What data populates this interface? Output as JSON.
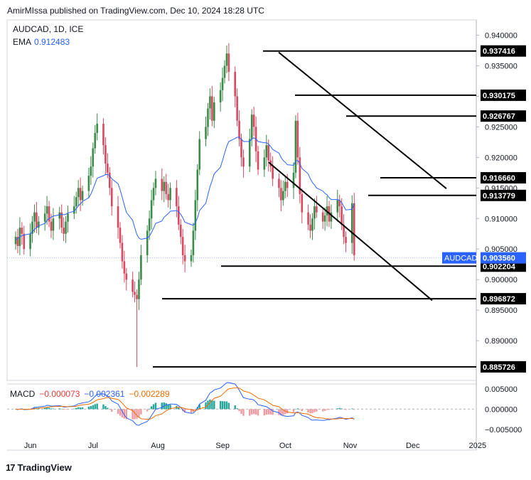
{
  "header": {
    "publish_line": "AmirMIssa published on TradingView.com, Dec 10, 2024 18:28 UTC"
  },
  "legend": {
    "symbol_line": "AUDCAD, 1D, ICE",
    "ema_label": "EMA",
    "ema_value": "0.912483"
  },
  "macd_legend": {
    "label": "MACD",
    "hist": "−0.000073",
    "macd": "−0.002361",
    "signal": "−0.002289"
  },
  "footer": {
    "brand": "TradingView"
  },
  "colors": {
    "up": "#26a69a",
    "up_body": "#3a8a48",
    "down": "#d9485f",
    "ema": "#2962ff",
    "signal": "#ef6c00",
    "hist_up": "#26a69a",
    "hist_down": "#ef9aa0"
  },
  "chart_data": {
    "type": "candlestick",
    "symbol": "AUDCAD",
    "timeframe": "1D",
    "exchange": "ICE",
    "price_axis": {
      "ticks": [
        "0.940000",
        "0.935000",
        "0.930000",
        "0.925000",
        "0.920000",
        "0.915000",
        "0.910000",
        "0.905000",
        "0.900000",
        "0.895000",
        "0.890000"
      ],
      "ylim": [
        0.8835,
        0.9425
      ]
    },
    "time_axis": {
      "ticks": [
        "Jun",
        "Jul",
        "Aug",
        "Sep",
        "Oct",
        "Nov",
        "Dec",
        "2025"
      ]
    },
    "level_labels": [
      "0.937416",
      "0.930175",
      "0.926767",
      "0.916660",
      "0.913779",
      "0.902204",
      "0.896872",
      "0.885726"
    ],
    "current_price": {
      "label": "AUDCAD",
      "value": "0.903560"
    },
    "macd_axis": {
      "ticks": [
        "0.005000",
        "0.000000",
        "−0.005000"
      ],
      "ylim": [
        -0.0066,
        0.0062
      ]
    },
    "candles_start": "2024-05-27",
    "closes": [
      0.907,
      0.9055,
      0.9085,
      0.9075,
      0.905,
      0.9075,
      0.9095,
      0.911,
      0.9085,
      0.9095,
      0.9108,
      0.912,
      0.9095,
      0.908,
      0.91,
      0.911,
      0.9085,
      0.9075,
      0.9095,
      0.9108,
      0.912,
      0.9135,
      0.915,
      0.913,
      0.9145,
      0.917,
      0.9185,
      0.9215,
      0.924,
      0.9255,
      0.922,
      0.919,
      0.9175,
      0.915,
      0.912,
      0.9085,
      0.906,
      0.903,
      0.901,
      0.9,
      0.898,
      0.8975,
      0.8968,
      0.9,
      0.904,
      0.908,
      0.91,
      0.913,
      0.915,
      0.9165,
      0.9145,
      0.916,
      0.914,
      0.913,
      0.915,
      0.912,
      0.909,
      0.907,
      0.904,
      0.903,
      0.904,
      0.908,
      0.913,
      0.918,
      0.923,
      0.925,
      0.928,
      0.93,
      0.926,
      0.929,
      0.931,
      0.933,
      0.935,
      0.937,
      0.934,
      0.93,
      0.926,
      0.923,
      0.92,
      0.9185,
      0.923,
      0.927,
      0.925,
      0.921,
      0.918,
      0.92,
      0.922,
      0.9195,
      0.9185,
      0.9165,
      0.915,
      0.913,
      0.9145,
      0.916,
      0.915,
      0.9175,
      0.926,
      0.92,
      0.914,
      0.911,
      0.909,
      0.908,
      0.91,
      0.912,
      0.911,
      0.9095,
      0.9105,
      0.912,
      0.9095,
      0.911,
      0.913,
      0.912,
      0.909,
      0.907,
      0.906,
      0.9125,
      0.904
    ],
    "ema": [
      0.9065,
      0.9067,
      0.907,
      0.9072,
      0.9073,
      0.9075,
      0.9078,
      0.9082,
      0.9085,
      0.9088,
      0.9092,
      0.9097,
      0.91,
      0.9102,
      0.9104,
      0.9106,
      0.9107,
      0.9106,
      0.9107,
      0.9109,
      0.9112,
      0.9116,
      0.9121,
      0.9124,
      0.9128,
      0.9134,
      0.914,
      0.9148,
      0.9157,
      0.9166,
      0.917,
      0.9172,
      0.9172,
      0.917,
      0.9165,
      0.9157,
      0.9147,
      0.9135,
      0.9122,
      0.911,
      0.9097,
      0.9085,
      0.9074,
      0.9068,
      0.9066,
      0.9068,
      0.9071,
      0.9077,
      0.9084,
      0.9092,
      0.9096,
      0.9102,
      0.9105,
      0.9108,
      0.9112,
      0.9113,
      0.9111,
      0.9107,
      0.9101,
      0.9094,
      0.909,
      0.9089,
      0.9093,
      0.9101,
      0.9113,
      0.9125,
      0.9139,
      0.9152,
      0.9162,
      0.9173,
      0.9184,
      0.9195,
      0.9207,
      0.9218,
      0.9226,
      0.9231,
      0.9233,
      0.9233,
      0.923,
      0.9226,
      0.9226,
      0.923,
      0.9232,
      0.923,
      0.9226,
      0.9224,
      0.9224,
      0.9222,
      0.9218,
      0.9213,
      0.9207,
      0.92,
      0.9195,
      0.9192,
      0.9188,
      0.9187,
      0.9194,
      0.9195,
      0.919,
      0.9182,
      0.9173,
      0.9165,
      0.9159,
      0.9155,
      0.915,
      0.9145,
      0.9141,
      0.9139,
      0.9134,
      0.9131,
      0.9131,
      0.913,
      0.9126,
      0.912,
      0.9114,
      0.9115,
      0.9124
    ]
  }
}
